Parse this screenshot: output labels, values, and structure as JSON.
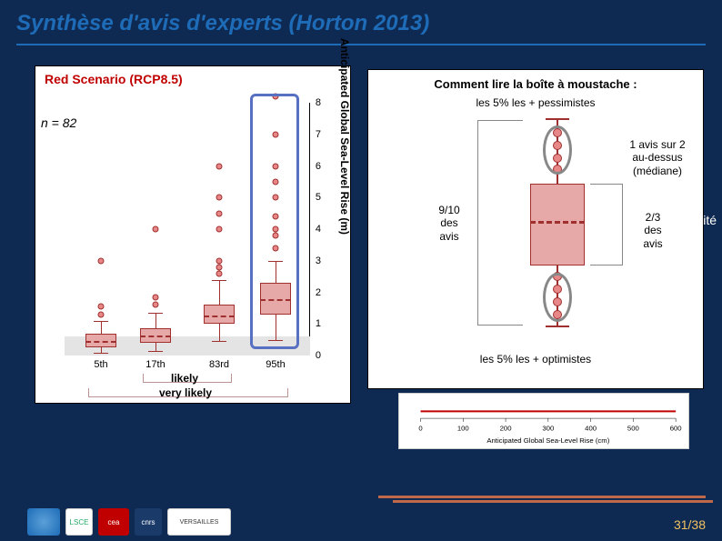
{
  "title": "Synthèse d'avis d'experts (Horton 2013)",
  "left_chart": {
    "type": "boxplot",
    "title": "Red Scenario (RCP8.5)",
    "n_label": "n = 82",
    "ylabel": "Anticipated Global Sea-Level Rise (m)",
    "ylim": [
      0,
      8
    ],
    "yticks": [
      0,
      1,
      2,
      3,
      4,
      5,
      6,
      7,
      8
    ],
    "categories": [
      "5th",
      "17th",
      "83rd",
      "95th"
    ],
    "likely_label": "likely",
    "very_likely_label": "very likely",
    "box_fill": "#e7a8a8",
    "box_border": "#a03030",
    "gray_band": [
      0,
      0.6
    ],
    "boxes": [
      {
        "q1": 0.25,
        "med": 0.5,
        "q3": 0.7,
        "lo": 0.1,
        "hi": 1.1
      },
      {
        "q1": 0.4,
        "med": 0.65,
        "q3": 0.85,
        "lo": 0.15,
        "hi": 1.35
      },
      {
        "q1": 1.0,
        "med": 1.3,
        "q3": 1.6,
        "lo": 0.45,
        "hi": 2.4
      },
      {
        "q1": 1.3,
        "med": 1.8,
        "q3": 2.3,
        "lo": 0.5,
        "hi": 3.0
      }
    ],
    "outliers": [
      {
        "cat": 0,
        "vals": [
          1.3,
          1.55,
          3.0
        ]
      },
      {
        "cat": 1,
        "vals": [
          1.6,
          1.85,
          4.0
        ]
      },
      {
        "cat": 2,
        "vals": [
          2.6,
          2.8,
          3.0,
          4.0,
          4.5,
          5.0,
          6.0
        ]
      },
      {
        "cat": 3,
        "vals": [
          3.4,
          3.8,
          4.0,
          4.4,
          5.0,
          5.5,
          6.0,
          7.0,
          8.2
        ]
      }
    ],
    "highlight_color": "#5870c2"
  },
  "right_panel": {
    "title": "Comment lire la boîte à moustache :",
    "top_label": "les 5% les + pessimistes",
    "bottom_label": "les 5% les + optimistes",
    "above_median": "1 avis sur 2\nau-dessus\n(médiane)",
    "left_brace": "9/10\ndes\navis",
    "right_brace": "2/3\ndes\navis",
    "box_fill": "#e7a8a8",
    "box_border": "#a03030"
  },
  "side_word": "lité",
  "strip_chart": {
    "xlabel": "Anticipated Global Sea-Level Rise (cm)",
    "xticks": [
      0,
      100,
      200,
      300,
      400,
      500,
      600
    ],
    "line_color": "#c00000"
  },
  "logos": [
    "IPSL",
    "LSCE",
    "CEA",
    "CNRS",
    "Versailles"
  ],
  "page": "31/38",
  "colors": {
    "bg": "#0f2a52",
    "title": "#1e6cb8",
    "accent": "#c0684a",
    "pagenum": "#f0c060"
  }
}
